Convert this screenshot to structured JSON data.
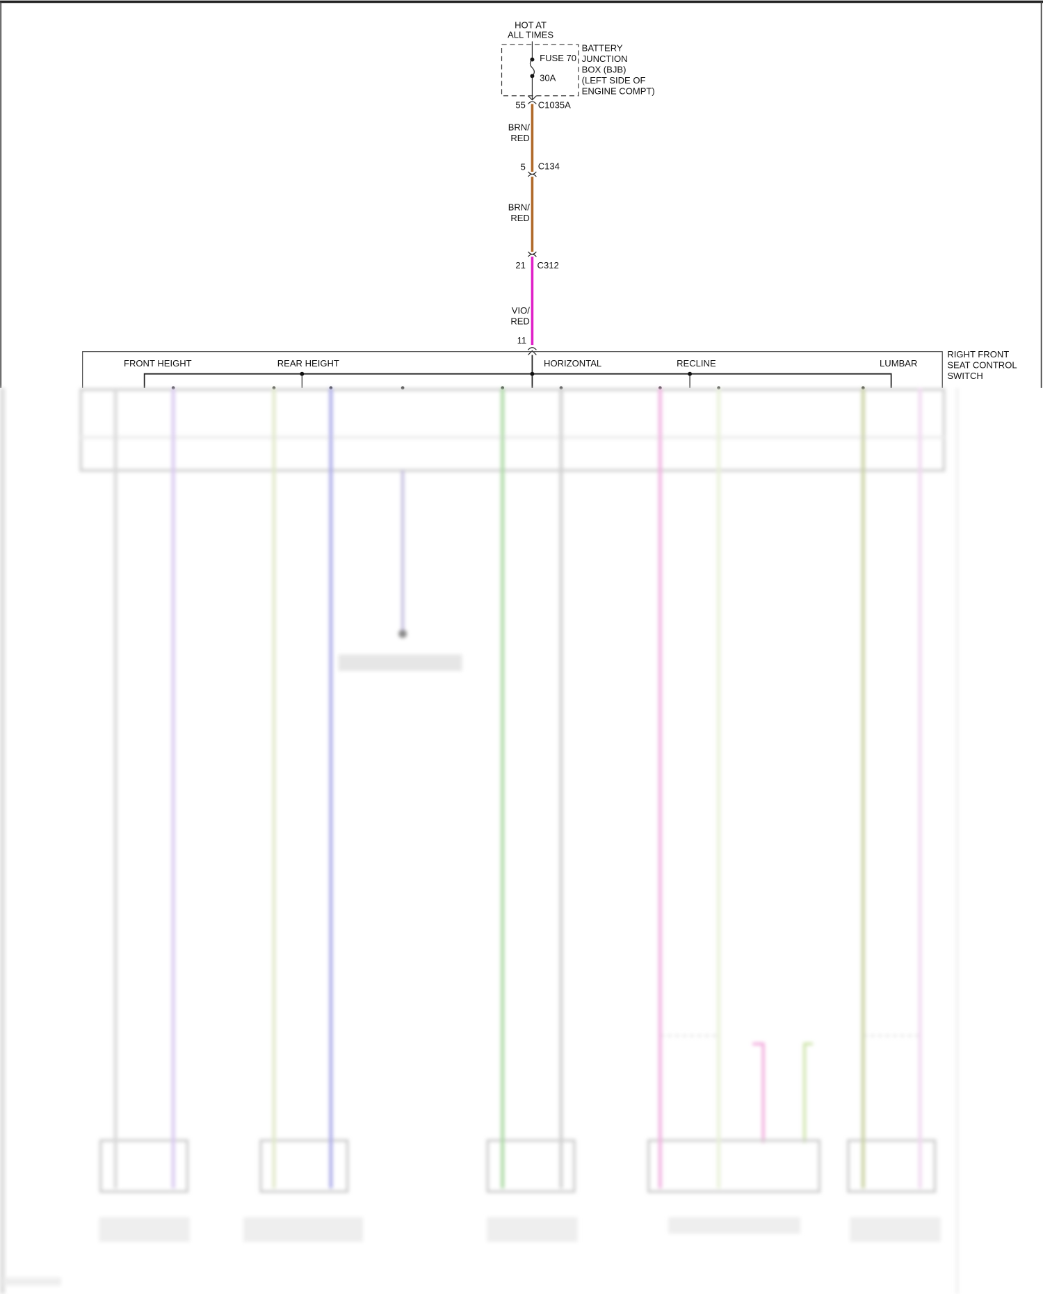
{
  "source": {
    "label_line1": "HOT AT",
    "label_line2": "ALL TIMES"
  },
  "fuse": {
    "name": "FUSE 70",
    "rating": "30A"
  },
  "bjb": {
    "lines": [
      "BATTERY",
      "JUNCTION",
      "BOX (BJB)",
      "(LEFT SIDE OF",
      "ENGINE COMPT)"
    ]
  },
  "connectors": [
    {
      "pin": "55",
      "name": "C1035A"
    },
    {
      "pin": "5",
      "name": "C134"
    },
    {
      "pin": "21",
      "name": "C312"
    },
    {
      "pin": "11",
      "name": ""
    }
  ],
  "wires": [
    {
      "line1": "BRN/",
      "line2": "RED",
      "color": "#b06a2a"
    },
    {
      "line1": "BRN/",
      "line2": "RED",
      "color": "#b06a2a"
    },
    {
      "line1": "VIO/",
      "line2": "RED",
      "color": "#e020c8"
    }
  ],
  "switch": {
    "lines": [
      "RIGHT FRONT",
      "SEAT CONTROL",
      "SWITCH"
    ],
    "sections": [
      "FRONT HEIGHT",
      "REAR HEIGHT",
      "HORIZONTAL",
      "RECLINE",
      "LUMBAR"
    ]
  },
  "lower_wire_colors": [
    "#d8d8d8",
    "#d8c8f0",
    "#e0e8c8",
    "#a8a8e8",
    "#b8b0d8",
    "#a8d8a0",
    "#cfcfcf",
    "#f0b0e0",
    "#e8f0d8",
    "#c8d0a0",
    "#f0d8f0"
  ]
}
